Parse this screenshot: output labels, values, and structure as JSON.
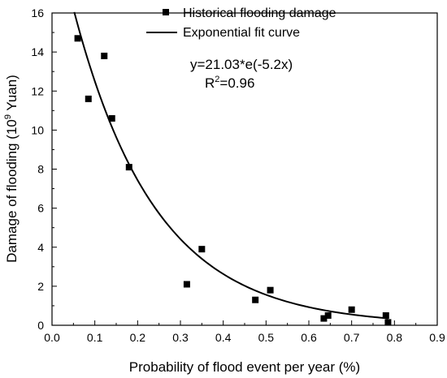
{
  "chart_data": {
    "type": "scatter",
    "xlabel": "Probability of flood event per year (%)",
    "ylabel_main": "Damage of flooding (10",
    "ylabel_sup": "9",
    "ylabel_tail": " Yuan)",
    "xlim": [
      0.0,
      0.9
    ],
    "ylim": [
      0,
      16
    ],
    "xticks": [
      "0.0",
      "0.1",
      "0.2",
      "0.3",
      "0.4",
      "0.5",
      "0.6",
      "0.7",
      "0.8",
      "0.9"
    ],
    "yticks": [
      "0",
      "2",
      "4",
      "6",
      "8",
      "10",
      "12",
      "14",
      "16"
    ],
    "series": [
      {
        "name": "Historical flooding damage",
        "marker": "square",
        "color": "#000000",
        "points": [
          {
            "x": 0.06,
            "y": 14.7
          },
          {
            "x": 0.085,
            "y": 11.6
          },
          {
            "x": 0.122,
            "y": 13.8
          },
          {
            "x": 0.14,
            "y": 10.6
          },
          {
            "x": 0.18,
            "y": 8.1
          },
          {
            "x": 0.315,
            "y": 2.1
          },
          {
            "x": 0.35,
            "y": 3.9
          },
          {
            "x": 0.475,
            "y": 1.3
          },
          {
            "x": 0.51,
            "y": 1.8
          },
          {
            "x": 0.635,
            "y": 0.35
          },
          {
            "x": 0.645,
            "y": 0.5
          },
          {
            "x": 0.7,
            "y": 0.8
          },
          {
            "x": 0.78,
            "y": 0.5
          },
          {
            "x": 0.785,
            "y": 0.15
          }
        ]
      },
      {
        "name": "Exponential fit curve",
        "type": "line",
        "color": "#000000",
        "equation": {
          "a": 21.03,
          "b": -5.2
        },
        "x_range": [
          0.052,
          0.785
        ]
      }
    ],
    "annotations": {
      "equation": "y=21.03*e(-5.2x)",
      "r2_prefix": "R",
      "r2_sup": "2",
      "r2_suffix": "=0.96"
    },
    "legend_position": "top-right",
    "grid": false
  }
}
